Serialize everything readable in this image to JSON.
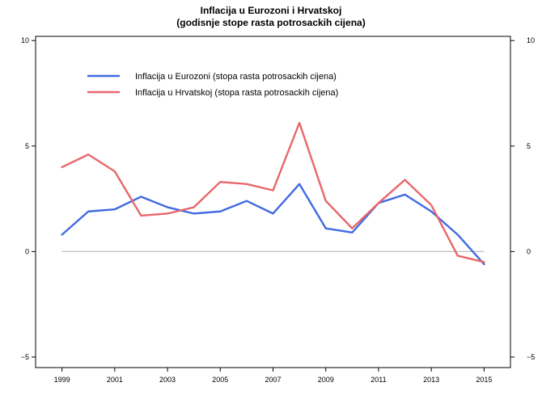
{
  "chart_data": {
    "type": "line",
    "title": "Inflacija u Eurozoni i Hrvatskoj",
    "subtitle": "(godisnje stope rasta potrosackih cijena)",
    "xlabel": "",
    "ylabel": "",
    "xlim": [
      1998,
      2016
    ],
    "ylim": [
      -5.5,
      10.2
    ],
    "x_ticks": [
      1999,
      2001,
      2003,
      2005,
      2007,
      2009,
      2011,
      2013,
      2015
    ],
    "y_ticks": [
      -5,
      0,
      5,
      10
    ],
    "y_tick_labels": [
      "−5",
      "0",
      "5",
      "10"
    ],
    "x_tick_labels": [
      "1999",
      "2001",
      "2003",
      "2005",
      "2007",
      "2009",
      "2011",
      "2013",
      "2015"
    ],
    "grid": false,
    "legend_position": "top-left",
    "reference_line": {
      "y": 0,
      "x_from": 1999,
      "x_to": 2015,
      "color": "#bebebe"
    },
    "x": [
      1999,
      2000,
      2001,
      2002,
      2003,
      2004,
      2005,
      2006,
      2007,
      2008,
      2009,
      2010,
      2011,
      2012,
      2013,
      2014,
      2015
    ],
    "series": [
      {
        "name": "Inflacija u Eurozoni (stopa rasta potrosackih cijena)",
        "color": "#4169e1",
        "values": [
          0.8,
          1.9,
          2.0,
          2.6,
          2.1,
          1.8,
          1.9,
          2.4,
          1.8,
          3.2,
          1.1,
          0.9,
          2.3,
          2.7,
          1.9,
          0.8,
          -0.6
        ]
      },
      {
        "name": "Inflacija u Hrvatskoj (stopa rasta potrosackih cijena)",
        "color": "#e8676b",
        "values": [
          4.0,
          4.6,
          3.8,
          1.7,
          1.8,
          2.1,
          3.3,
          3.2,
          2.9,
          6.1,
          2.4,
          1.1,
          2.3,
          3.4,
          2.2,
          -0.2,
          -0.5
        ]
      }
    ]
  }
}
